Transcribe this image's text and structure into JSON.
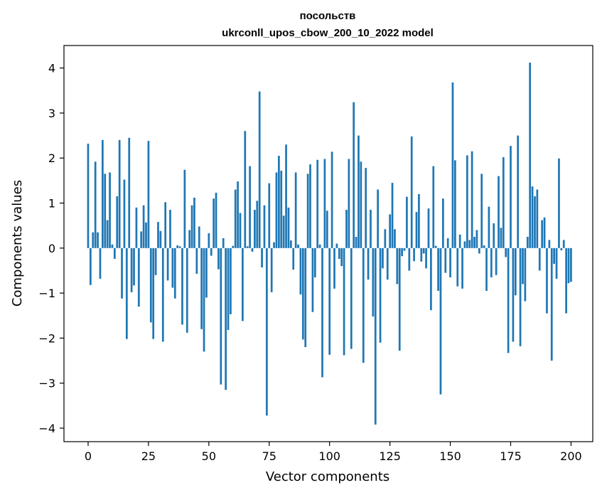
{
  "chart_data": {
    "type": "bar",
    "title": "посольств",
    "subtitle": "ukrconll_upos_cbow_200_10_2022 model",
    "xlabel": "Vector components",
    "ylabel": "Components values",
    "xlim": [
      -10,
      209
    ],
    "ylim": [
      -4.3,
      4.5
    ],
    "xticks": [
      0,
      25,
      50,
      75,
      100,
      125,
      150,
      175,
      200
    ],
    "yticks": [
      -4,
      -3,
      -2,
      -1,
      0,
      1,
      2,
      3,
      4
    ],
    "bar_color": "#1f77b4",
    "grid": false,
    "values": [
      2.32,
      -0.82,
      0.35,
      1.92,
      0.35,
      -0.68,
      2.4,
      1.65,
      0.62,
      1.68,
      0.08,
      -0.24,
      1.15,
      2.4,
      -1.12,
      1.52,
      -2.02,
      2.45,
      -0.98,
      -0.83,
      0.9,
      -1.3,
      0.37,
      0.95,
      0.57,
      2.38,
      -1.65,
      -2.02,
      -0.6,
      0.58,
      0.38,
      -2.08,
      1.02,
      -0.72,
      0.85,
      -0.88,
      -1.12,
      0.06,
      0.04,
      -1.7,
      1.74,
      -1.88,
      0.4,
      0.95,
      1.12,
      -0.57,
      0.48,
      -1.8,
      -2.3,
      -1.1,
      0.33,
      -0.17,
      1.1,
      1.23,
      -0.47,
      -3.03,
      0.22,
      -3.15,
      -1.82,
      -1.47,
      0.05,
      1.3,
      1.48,
      0.78,
      -1.62,
      2.6,
      0.04,
      1.82,
      -0.08,
      0.85,
      1.05,
      3.48,
      -0.43,
      0.95,
      -3.72,
      1.44,
      -0.98,
      0.13,
      1.68,
      2.05,
      1.72,
      0.72,
      2.3,
      0.9,
      0.17,
      -0.48,
      1.68,
      0.08,
      -1.03,
      -2.03,
      -2.2,
      1.65,
      1.86,
      -1.42,
      -0.65,
      1.96,
      0.08,
      -2.87,
      1.98,
      0.83,
      -2.37,
      2.14,
      -0.9,
      0.1,
      -0.24,
      -0.4,
      -2.38,
      0.85,
      1.98,
      -2.24,
      3.24,
      0.25,
      2.5,
      1.92,
      -2.55,
      1.78,
      -0.7,
      0.85,
      -1.52,
      -3.92,
      1.3,
      -2.1,
      -0.45,
      0.42,
      -0.7,
      0.75,
      1.45,
      0.42,
      -0.8,
      -2.28,
      -0.18,
      -0.06,
      1.14,
      -0.5,
      2.48,
      -0.29,
      0.8,
      1.2,
      -0.3,
      -0.12,
      -0.45,
      0.88,
      -1.38,
      1.82,
      0.05,
      -0.95,
      -3.25,
      1.1,
      -0.55,
      0.22,
      -0.65,
      3.68,
      1.95,
      -0.85,
      0.3,
      -0.9,
      0.15,
      2.06,
      0.18,
      2.15,
      0.25,
      0.4,
      -0.12,
      1.65,
      0.06,
      -0.95,
      0.92,
      -0.65,
      0.55,
      -0.6,
      1.6,
      0.45,
      2.02,
      -0.2,
      -2.33,
      2.27,
      -2.08,
      -1.05,
      2.5,
      -2.18,
      -0.8,
      -1.18,
      0.25,
      4.12,
      1.37,
      1.15,
      1.3,
      -0.5,
      0.62,
      0.68,
      -1.45,
      0.18,
      -2.5,
      -0.35,
      -0.68,
      1.99,
      -0.05,
      0.18,
      -1.45,
      -0.78,
      -0.75
    ]
  }
}
